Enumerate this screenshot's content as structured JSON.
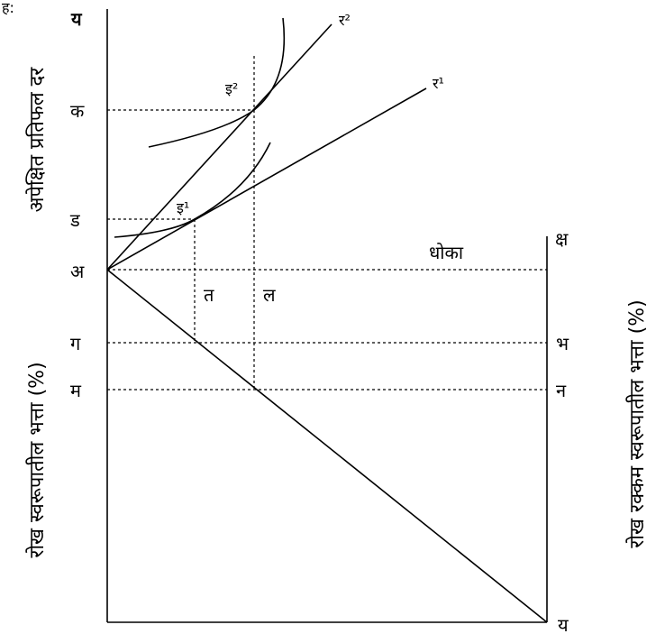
{
  "corner_mark": "ह:",
  "vertical_left_top": "अपेक्षित प्रतिफल दर",
  "vertical_left_bottom": "रोख स्वरूपातील भत्ता (%)",
  "vertical_right": "रोख रक्कम स्वरूपातील भत्ता (%)",
  "axis_top": "य",
  "axis_bottom_right": "य",
  "point_k": "क",
  "point_d": "ड",
  "point_a": "अ",
  "point_g": "ग",
  "point_m": "म",
  "point_t": "त",
  "point_l": "ल",
  "risk": "धोका",
  "kshe": "क्ष",
  "point_bh": "भ",
  "point_n": "न",
  "i1": "इ¹",
  "i2": "इ²",
  "r1": "र¹",
  "r2": "र²"
}
